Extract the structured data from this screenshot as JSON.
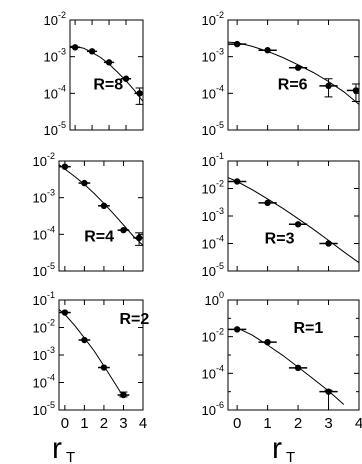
{
  "chart_data": [
    {
      "type": "scatter",
      "label": "R=8",
      "xlabel": "r",
      "xlabel_sub": "T",
      "xlim": [
        -0.3,
        4
      ],
      "yscale": "log",
      "ylim_exp": [
        -5,
        -2
      ],
      "xticks": [
        0,
        1,
        2,
        3,
        4
      ],
      "show_xticklabels": false,
      "points": [
        {
          "x": 0,
          "y": 0.0018,
          "xerr": 0.3,
          "ylo": 0.0018,
          "yhi": 0.0018
        },
        {
          "x": 1,
          "y": 0.0014,
          "xerr": 0.3,
          "ylo": 0.0014,
          "yhi": 0.0014
        },
        {
          "x": 2,
          "y": 0.0007,
          "xerr": 0.3,
          "ylo": 0.0007,
          "yhi": 0.0007
        },
        {
          "x": 3,
          "y": 0.00025,
          "xerr": 0.3,
          "ylo": 0.00025,
          "yhi": 0.00025
        },
        {
          "x": 3.8,
          "y": 0.0001,
          "xerr": 0.3,
          "ylo": 5e-05,
          "yhi": 0.00014
        }
      ],
      "curve": {
        "x": [
          -0.3,
          0,
          0.5,
          1,
          1.5,
          2,
          2.5,
          3,
          3.5,
          4
        ],
        "y": [
          0.0019,
          0.0019,
          0.0017,
          0.0013,
          0.00095,
          0.00063,
          0.00038,
          0.00022,
          0.00012,
          6e-05
        ]
      }
    },
    {
      "type": "scatter",
      "label": "R=6",
      "xlabel": "r",
      "xlabel_sub": "T",
      "xlim": [
        -0.3,
        4
      ],
      "yscale": "log",
      "ylim_exp": [
        -5,
        -2
      ],
      "xticks": [
        0,
        1,
        2,
        3,
        4
      ],
      "show_xticklabels": false,
      "points": [
        {
          "x": 0,
          "y": 0.0022,
          "xerr": 0.3,
          "ylo": 0.0022,
          "yhi": 0.0022
        },
        {
          "x": 1,
          "y": 0.0015,
          "xerr": 0.3,
          "ylo": 0.0015,
          "yhi": 0.0015
        },
        {
          "x": 2,
          "y": 0.0005,
          "xerr": 0.3,
          "ylo": 0.0005,
          "yhi": 0.0005
        },
        {
          "x": 3,
          "y": 0.00016,
          "xerr": 0.3,
          "ylo": 8e-05,
          "yhi": 0.00025
        },
        {
          "x": 3.9,
          "y": 0.00012,
          "xerr": 0.3,
          "ylo": 6e-05,
          "yhi": 0.00018
        }
      ],
      "curve": {
        "x": [
          -0.3,
          0,
          0.5,
          1,
          1.5,
          2,
          2.5,
          3,
          3.5,
          4
        ],
        "y": [
          0.0025,
          0.0024,
          0.0019,
          0.0014,
          0.00095,
          0.0006,
          0.00037,
          0.00021,
          0.00011,
          5e-05
        ]
      }
    },
    {
      "type": "scatter",
      "label": "R=4",
      "xlabel": "r",
      "xlabel_sub": "T",
      "xlim": [
        -0.3,
        4
      ],
      "yscale": "log",
      "ylim_exp": [
        -5,
        -2
      ],
      "xticks": [
        0,
        1,
        2,
        3,
        4
      ],
      "show_xticklabels": false,
      "points": [
        {
          "x": 0,
          "y": 0.007,
          "xerr": 0.3,
          "ylo": 0.007,
          "yhi": 0.007
        },
        {
          "x": 1,
          "y": 0.0025,
          "xerr": 0.3,
          "ylo": 0.0025,
          "yhi": 0.0025
        },
        {
          "x": 2,
          "y": 0.0006,
          "xerr": 0.3,
          "ylo": 0.0006,
          "yhi": 0.0006
        },
        {
          "x": 3,
          "y": 0.00013,
          "xerr": 0.3,
          "ylo": 0.00013,
          "yhi": 0.00013
        },
        {
          "x": 3.8,
          "y": 8e-05,
          "xerr": 0.3,
          "ylo": 5e-05,
          "yhi": 0.00011
        }
      ],
      "curve": {
        "x": [
          -0.3,
          0,
          0.5,
          1,
          1.5,
          2,
          2.5,
          3,
          3.5,
          4
        ],
        "y": [
          0.008,
          0.006,
          0.0038,
          0.0023,
          0.0013,
          0.0007,
          0.00036,
          0.00018,
          9e-05,
          5e-05
        ]
      }
    },
    {
      "type": "scatter",
      "label": "R=3",
      "xlabel": "r",
      "xlabel_sub": "T",
      "xlim": [
        -0.3,
        4
      ],
      "yscale": "log",
      "ylim_exp": [
        -5,
        -1
      ],
      "xticks": [
        0,
        1,
        2,
        3,
        4
      ],
      "show_xticklabels": false,
      "points": [
        {
          "x": 0,
          "y": 0.018,
          "xerr": 0.3,
          "ylo": 0.018,
          "yhi": 0.018
        },
        {
          "x": 1,
          "y": 0.003,
          "xerr": 0.3,
          "ylo": 0.003,
          "yhi": 0.003
        },
        {
          "x": 2,
          "y": 0.0005,
          "xerr": 0.3,
          "ylo": 0.0005,
          "yhi": 0.0005
        },
        {
          "x": 3,
          "y": 0.0001,
          "xerr": 0.3,
          "ylo": 0.0001,
          "yhi": 0.0001
        }
      ],
      "curve": {
        "x": [
          -0.3,
          0,
          0.5,
          1,
          1.5,
          2,
          2.5,
          3,
          3.5,
          4
        ],
        "y": [
          0.025,
          0.018,
          0.009,
          0.0042,
          0.0019,
          0.0008,
          0.00033,
          0.00013,
          5e-05,
          2e-05
        ]
      }
    },
    {
      "type": "scatter",
      "label": "R=2",
      "xlabel": "r",
      "xlabel_sub": "T",
      "xlim": [
        -0.3,
        4
      ],
      "yscale": "log",
      "ylim_exp": [
        -5,
        -1
      ],
      "xticks": [
        0,
        1,
        2,
        3,
        4
      ],
      "xticklabels": [
        "0",
        "1",
        "2",
        "3",
        "4"
      ],
      "show_xticklabels": true,
      "points": [
        {
          "x": 0,
          "y": 0.035,
          "xerr": 0.3,
          "ylo": 0.035,
          "yhi": 0.035
        },
        {
          "x": 1,
          "y": 0.0035,
          "xerr": 0.3,
          "ylo": 0.0035,
          "yhi": 0.0035
        },
        {
          "x": 2,
          "y": 0.00035,
          "xerr": 0.3,
          "ylo": 0.00035,
          "yhi": 0.00035
        },
        {
          "x": 3,
          "y": 3.5e-05,
          "xerr": 0.3,
          "ylo": 3e-05,
          "yhi": 4.5e-05
        }
      ],
      "curve": {
        "x": [
          -0.3,
          0,
          0.5,
          1,
          1.5,
          2,
          2.5,
          3
        ],
        "y": [
          0.045,
          0.03,
          0.012,
          0.0042,
          0.0014,
          0.0004,
          0.00011,
          3e-05
        ]
      }
    },
    {
      "type": "scatter",
      "label": "R=1",
      "xlabel": "r",
      "xlabel_sub": "T",
      "xlim": [
        -0.3,
        4
      ],
      "yscale": "log",
      "ylim_exp": [
        -6,
        0
      ],
      "ytick_exps": [
        -6,
        -4,
        -2,
        0
      ],
      "xticks": [
        0,
        1,
        2,
        3,
        4
      ],
      "xticklabels": [
        "0",
        "1",
        "2",
        "3",
        "4"
      ],
      "show_xticklabels": true,
      "points": [
        {
          "x": 0,
          "y": 0.025,
          "xerr": 0.3,
          "ylo": 0.025,
          "yhi": 0.025
        },
        {
          "x": 1,
          "y": 0.005,
          "xerr": 0.3,
          "ylo": 0.005,
          "yhi": 0.005
        },
        {
          "x": 2,
          "y": 0.0002,
          "xerr": 0.3,
          "ylo": 0.0002,
          "yhi": 0.0002
        },
        {
          "x": 3,
          "y": 1e-05,
          "xerr": 0.3,
          "ylo": 1e-06,
          "yhi": 1.2e-05
        }
      ],
      "curve": {
        "x": [
          0,
          0.5,
          1,
          1.5,
          2,
          2.5,
          3,
          3.5
        ],
        "y": [
          0.03,
          0.012,
          0.0035,
          0.00095,
          0.00022,
          5e-05,
          1.1e-05,
          2e-06
        ]
      }
    }
  ],
  "axis_title": {
    "text": "r",
    "sub": "T"
  }
}
